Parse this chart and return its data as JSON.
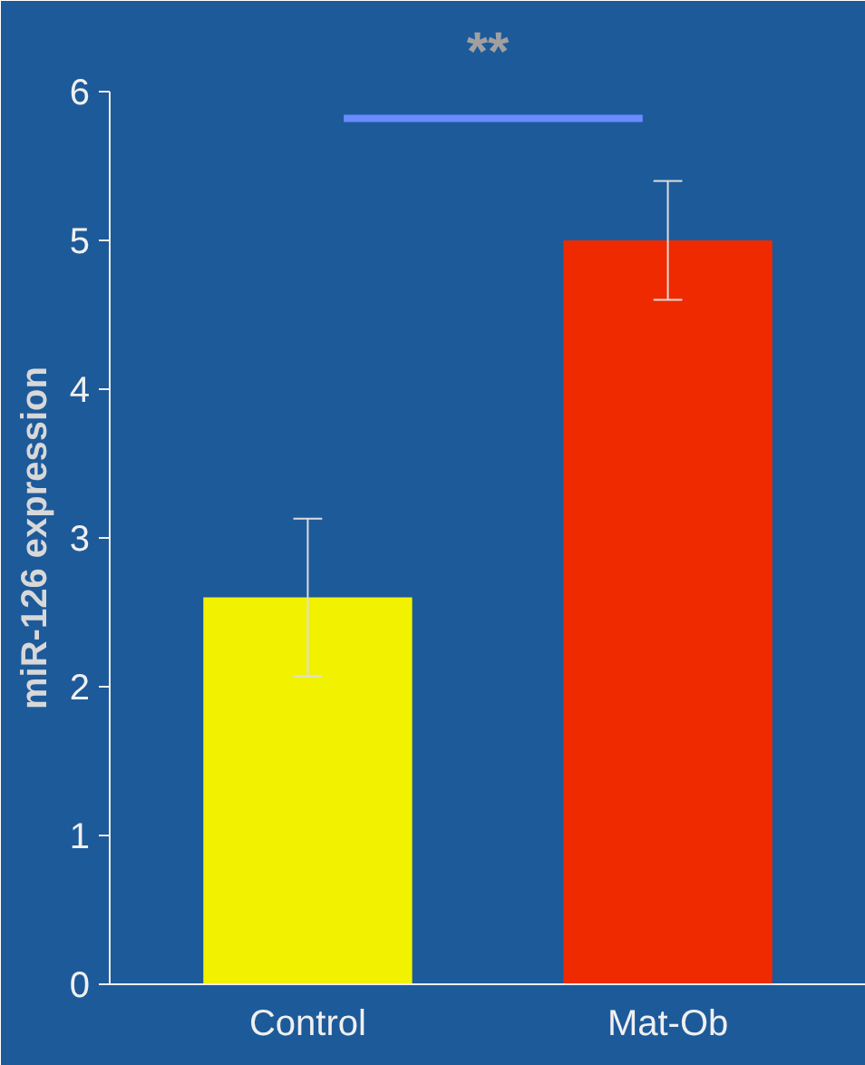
{
  "chart_data": {
    "type": "bar",
    "ylabel": "miR-126 expression",
    "categories": [
      "Control",
      "Mat-Ob"
    ],
    "values": [
      2.6,
      5.0
    ],
    "colors": [
      "#f2f200",
      "#f02a00"
    ],
    "errors": [
      0.53,
      0.4
    ],
    "ylim": [
      0,
      6
    ],
    "yticks": [
      0,
      1,
      2,
      3,
      4,
      5,
      6
    ],
    "grid": false,
    "annotations": [
      "**"
    ]
  }
}
